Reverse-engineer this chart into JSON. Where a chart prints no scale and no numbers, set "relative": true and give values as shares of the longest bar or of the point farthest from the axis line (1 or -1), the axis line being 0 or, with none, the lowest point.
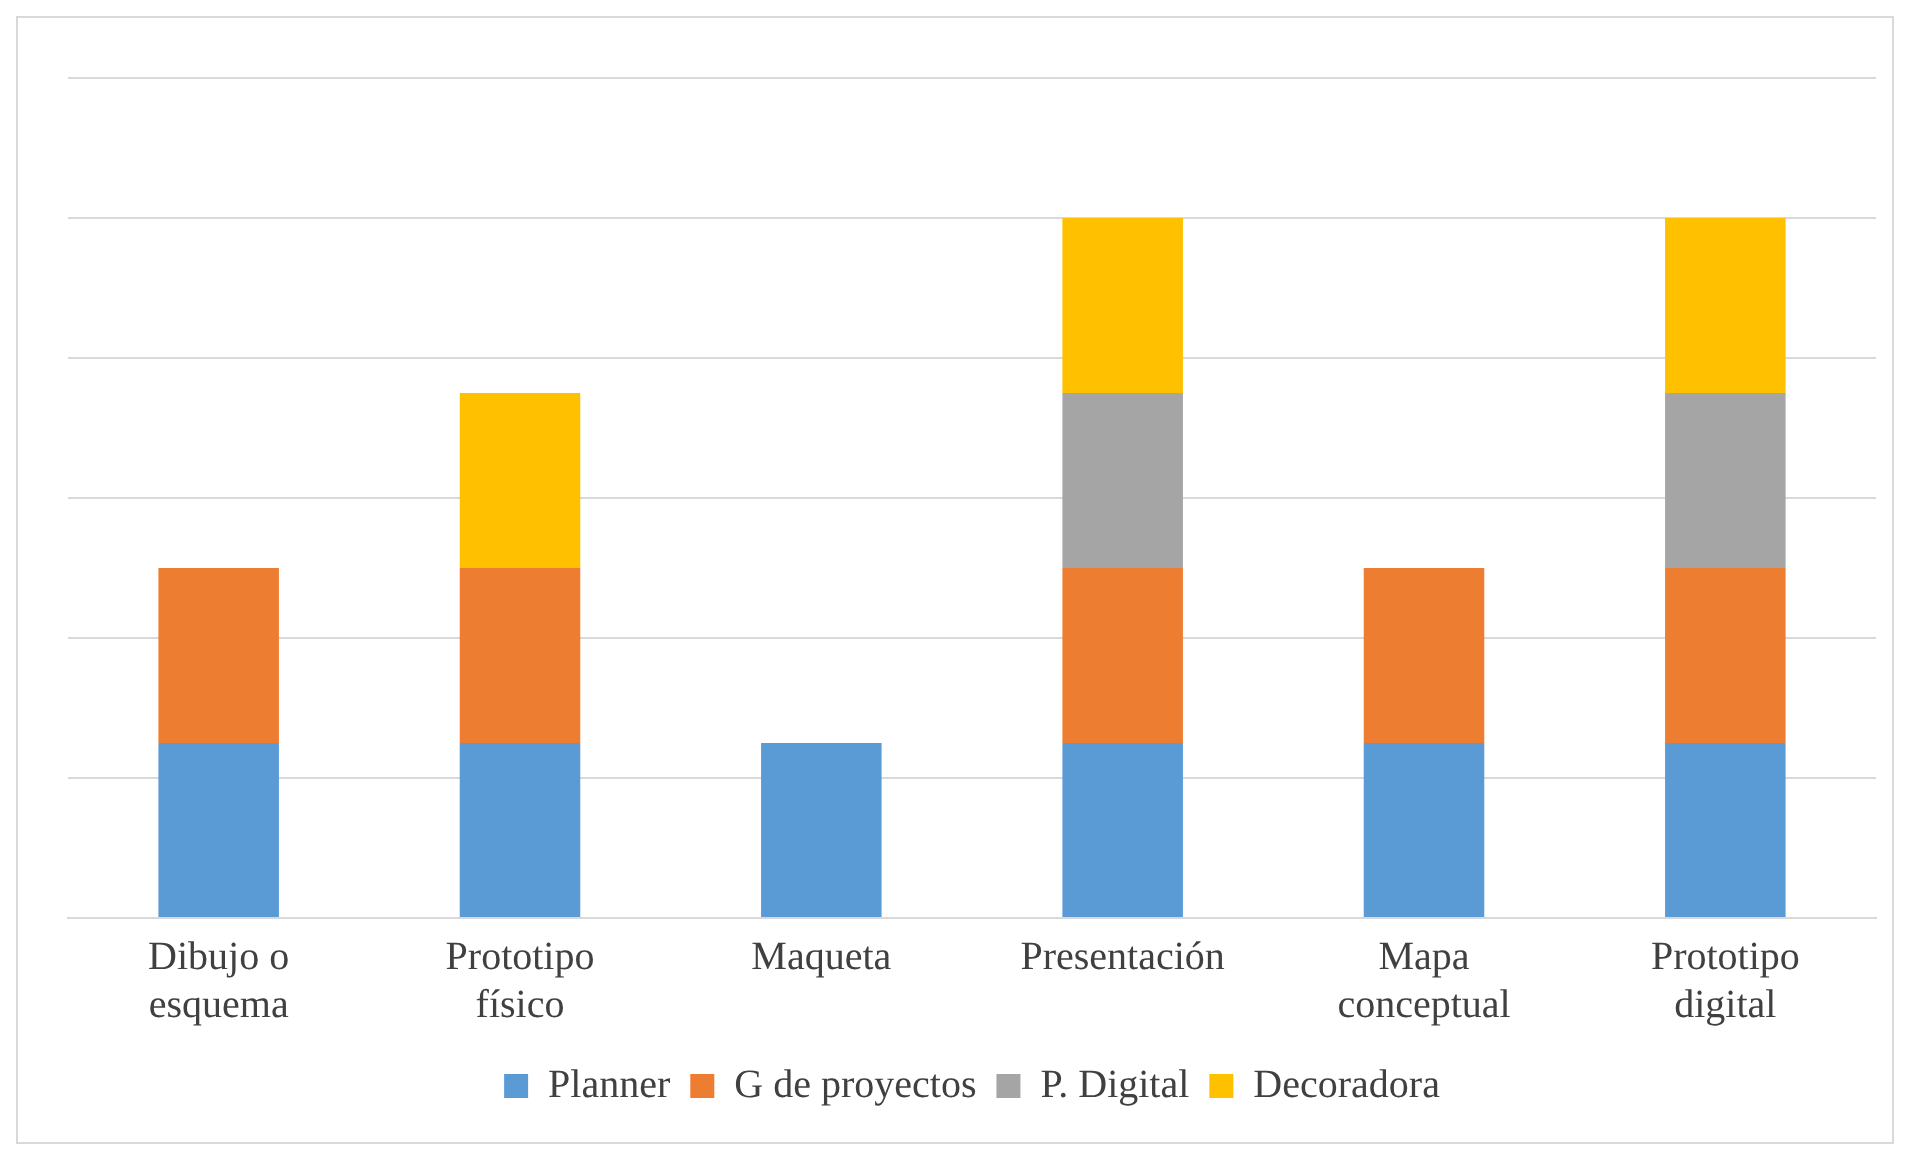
{
  "chart_data": {
    "type": "bar",
    "stacked": true,
    "relative": true,
    "grid": "y",
    "legend": "bottom",
    "categories": [
      "Dibujo o esquema",
      "Prototipo físico",
      "Maqueta",
      "Presentación",
      "Mapa conceptual",
      "Prototipo digital"
    ],
    "series": [
      {
        "name": "Planner",
        "color": "#5b9bd5",
        "values": [
          0.25,
          0.25,
          0.25,
          0.25,
          0.25,
          0.25
        ]
      },
      {
        "name": "G de proyectos",
        "color": "#ed7d31",
        "values": [
          0.25,
          0.25,
          null,
          0.25,
          0.25,
          0.25
        ]
      },
      {
        "name": "P. Digital",
        "color": "#a5a5a5",
        "values": [
          null,
          null,
          null,
          0.25,
          null,
          0.25
        ]
      },
      {
        "name": "Decoradora",
        "color": "#ffc000",
        "values": [
          null,
          0.25,
          null,
          0.25,
          null,
          0.25
        ]
      }
    ]
  }
}
